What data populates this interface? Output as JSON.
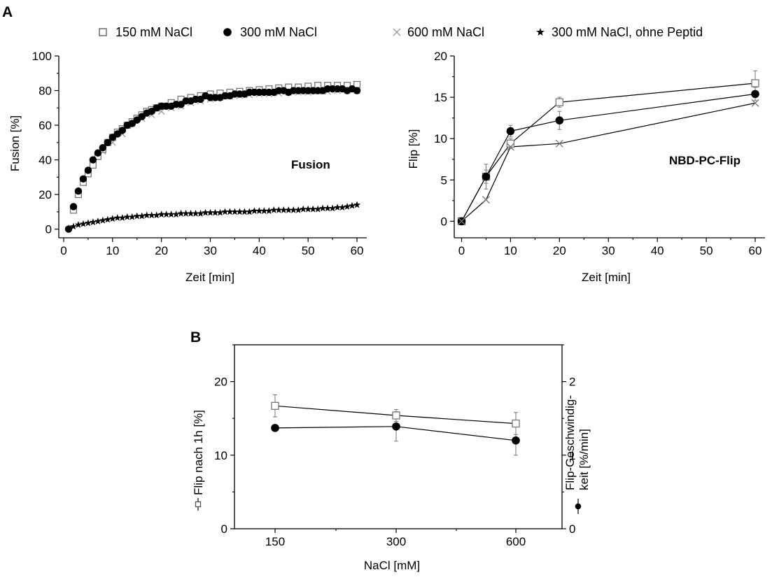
{
  "panels": {
    "A": "A",
    "B": "B"
  },
  "legend": [
    {
      "label": "150 mM NaCl",
      "marker": "open-square"
    },
    {
      "label": "300 mM NaCl",
      "marker": "filled-circle"
    },
    {
      "label": "600 mM NaCl",
      "marker": "cross"
    },
    {
      "label": "300 mM NaCl, ohne Peptid",
      "marker": "star"
    }
  ],
  "chart_data": [
    {
      "id": "fusion",
      "type": "scatter",
      "annotation": "Fusion",
      "xlabel": "Zeit [min]",
      "ylabel": "Fusion [%]",
      "xlim": [
        -1,
        62
      ],
      "ylim": [
        -5,
        100
      ],
      "xticks": [
        0,
        10,
        20,
        30,
        40,
        50,
        60
      ],
      "yticks": [
        0,
        20,
        40,
        60,
        80,
        100
      ],
      "series": [
        {
          "name": "150 mM NaCl",
          "marker": "open-square",
          "color": "#777777",
          "x": [
            2,
            3,
            4,
            5,
            6,
            7,
            8,
            9,
            10,
            11,
            12,
            13,
            14,
            15,
            16,
            17,
            18,
            19,
            20,
            22,
            24,
            26,
            28,
            30,
            32,
            34,
            36,
            38,
            40,
            42,
            44,
            46,
            48,
            50,
            52,
            54,
            56,
            58,
            60
          ],
          "y": [
            11,
            20,
            27,
            32,
            37,
            42,
            46,
            50,
            53,
            56,
            58,
            60,
            62,
            64,
            66,
            68,
            69,
            70,
            71,
            73,
            75,
            76,
            77,
            78,
            78.5,
            79,
            79.5,
            80,
            80.5,
            81,
            81.5,
            82,
            82,
            82.5,
            83,
            83,
            83,
            83,
            83.5
          ]
        },
        {
          "name": "300 mM NaCl",
          "marker": "filled-circle",
          "color": "#000000",
          "x": [
            1,
            2,
            3,
            4,
            5,
            6,
            7,
            8,
            9,
            10,
            11,
            12,
            13,
            14,
            15,
            16,
            17,
            18,
            19,
            20,
            21,
            22,
            23,
            24,
            25,
            26,
            27,
            28,
            29,
            30,
            31,
            32,
            33,
            34,
            35,
            36,
            37,
            38,
            39,
            40,
            41,
            42,
            43,
            44,
            45,
            46,
            47,
            48,
            49,
            50,
            51,
            52,
            53,
            54,
            55,
            56,
            57,
            58,
            59,
            60
          ],
          "y": [
            0,
            13,
            22,
            29,
            34,
            40,
            44,
            47,
            50,
            53,
            55,
            57,
            60,
            61,
            63,
            65,
            67,
            68,
            70,
            71,
            71,
            71,
            72,
            72,
            74,
            74,
            75,
            75,
            77,
            76,
            76,
            76,
            77,
            77,
            78,
            78,
            78,
            79,
            79,
            79,
            79,
            79,
            79,
            80,
            80,
            79,
            80,
            80,
            80,
            80,
            80,
            80,
            80,
            81,
            81,
            81,
            81,
            80,
            81,
            80
          ]
        },
        {
          "name": "600 mM NaCl",
          "marker": "cross",
          "color": "#9a9a9a",
          "x": [
            4,
            6,
            8,
            10,
            12,
            14,
            16,
            18,
            20,
            22,
            24,
            26,
            28,
            30,
            32,
            34,
            36,
            38,
            40,
            42,
            44,
            46,
            48,
            50,
            52,
            54,
            56,
            58,
            60
          ],
          "y": [
            28,
            38,
            45,
            50,
            55,
            61,
            64,
            66,
            68,
            70,
            71,
            73,
            74,
            75,
            76,
            76.5,
            77,
            77.5,
            78,
            78,
            78.5,
            79,
            79,
            79,
            79.5,
            79.5,
            80,
            80,
            80
          ]
        },
        {
          "name": "300 mM NaCl, ohne Peptid",
          "marker": "star",
          "color": "#000000",
          "x": [
            1,
            2,
            3,
            4,
            5,
            6,
            7,
            8,
            9,
            10,
            11,
            12,
            13,
            14,
            15,
            16,
            17,
            18,
            19,
            20,
            21,
            22,
            23,
            24,
            25,
            26,
            27,
            28,
            29,
            30,
            31,
            32,
            33,
            34,
            35,
            36,
            37,
            38,
            39,
            40,
            41,
            42,
            43,
            44,
            45,
            46,
            47,
            48,
            49,
            50,
            51,
            52,
            53,
            54,
            55,
            56,
            57,
            58,
            59,
            60
          ],
          "y": [
            0.5,
            1.5,
            2.5,
            3,
            3.5,
            4,
            4.5,
            5,
            5.5,
            6,
            6.5,
            6.5,
            7,
            7,
            7.5,
            7.5,
            8,
            8,
            8,
            8.5,
            8.5,
            8.5,
            8.5,
            9,
            9,
            9,
            9,
            9,
            9.5,
            9.5,
            9.5,
            9.5,
            10,
            10,
            10,
            10,
            10,
            10,
            10.5,
            10.5,
            10.5,
            10.5,
            11,
            11,
            11,
            11,
            11,
            11,
            11.5,
            11.5,
            11.5,
            11.5,
            12,
            12,
            12,
            12.5,
            12.5,
            13,
            13.5,
            14
          ]
        }
      ]
    },
    {
      "id": "flip",
      "type": "line",
      "annotation": "NBD-PC-Flip",
      "xlabel": "Zeit [min]",
      "ylabel": "Flip [%]",
      "xlim": [
        -1.5,
        62
      ],
      "ylim": [
        -2,
        20
      ],
      "xticks": [
        0,
        10,
        20,
        30,
        40,
        50,
        60
      ],
      "yticks": [
        0,
        5,
        10,
        15,
        20
      ],
      "series": [
        {
          "name": "150 mM NaCl",
          "marker": "open-square",
          "color": "#777777",
          "x": [
            0,
            5,
            10,
            20,
            60
          ],
          "y": [
            0,
            5.4,
            9.4,
            14.4,
            16.7
          ],
          "err": [
            0,
            1.5,
            0.6,
            0.6,
            1.5
          ]
        },
        {
          "name": "300 mM NaCl",
          "marker": "filled-circle",
          "color": "#000000",
          "x": [
            0,
            5,
            10,
            20,
            60
          ],
          "y": [
            0,
            5.4,
            10.9,
            12.2,
            15.4
          ],
          "err": [
            0,
            0.8,
            0.7,
            1.1,
            0.8
          ]
        },
        {
          "name": "600 mM NaCl",
          "marker": "cross",
          "color": "#777777",
          "x": [
            0,
            5,
            10,
            20,
            60
          ],
          "y": [
            0,
            2.6,
            9.0,
            9.4,
            14.3
          ],
          "err": [
            0,
            0,
            0,
            0,
            0
          ]
        }
      ]
    },
    {
      "id": "nacl",
      "type": "line",
      "xlabel": "NaCl [mM]",
      "ylabel": "Flip nach 1h [%]",
      "ylabel_right": "Flip-Geschwindig-\nkeit [%/min]",
      "categories": [
        "150",
        "300",
        "600"
      ],
      "ylim": [
        0,
        25
      ],
      "ylim_right": [
        0,
        2.5
      ],
      "yticks": [
        0,
        10,
        20
      ],
      "yticks_right": [
        0,
        1,
        2
      ],
      "series": [
        {
          "name": "Flip nach 1h [%]",
          "marker": "open-square",
          "color": "#777777",
          "axis": "left",
          "values": [
            16.7,
            15.4,
            14.3
          ],
          "err": [
            1.5,
            0.8,
            1.5
          ]
        },
        {
          "name": "Flip-Geschwindigkeit [%/min]",
          "marker": "filled-circle",
          "color": "#000000",
          "axis": "right",
          "values": [
            1.37,
            1.39,
            1.2
          ],
          "err": [
            0,
            0.2,
            0.2
          ]
        }
      ]
    }
  ]
}
